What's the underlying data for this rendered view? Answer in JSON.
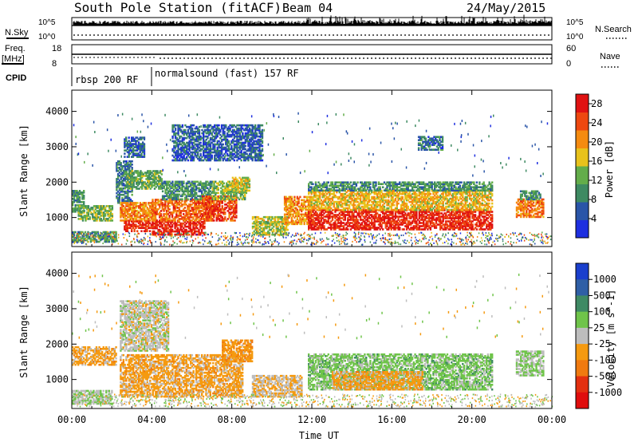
{
  "header": {
    "station": "South Pole Station (fitACF)",
    "beam": "Beam 04",
    "date": "24/May/2015"
  },
  "top_panels": {
    "nsky_label": "N.Sky",
    "nsky_ticks": [
      "10^5",
      "10^0"
    ],
    "nsearch_label": "N.Search",
    "nsearch_ticks": [
      "10^5",
      "10^0"
    ],
    "freq_label": "Freq.",
    "freq_unit": "[MHz]",
    "freq_ticks": [
      "18",
      "8"
    ],
    "nave_label": "Nave",
    "nave_ticks": [
      "60",
      "0"
    ],
    "cpid_label": "CPID",
    "cpid_segments": [
      {
        "label": "rbsp 200 RF",
        "start_hour": 0.0
      },
      {
        "label": "normalsound (fast) 157 RF",
        "start_hour": 3.9
      }
    ]
  },
  "colors": {
    "power_scale": [
      "#1e2fe0",
      "#2a55a8",
      "#3e8a62",
      "#63ad4a",
      "#e8c21b",
      "#f58b10",
      "#ee4810",
      "#e01212"
    ],
    "velocity_scale": [
      "#1a3fcd",
      "#2f5fa6",
      "#3f8a64",
      "#6fc44a",
      "#bdbdbd",
      "#f59a10",
      "#f07a10",
      "#e33010",
      "#e00d0d"
    ]
  },
  "chart_data": [
    {
      "type": "heatmap",
      "title": "",
      "xlabel": "Time UT",
      "ylabel": "Slant Range [km]",
      "xlim": [
        0,
        24
      ],
      "ylim": [
        180,
        4600
      ],
      "x_ticks": [
        "00:00",
        "04:00",
        "08:00",
        "12:00",
        "16:00",
        "20:00",
        "00:00"
      ],
      "y_ticks": [
        "1000",
        "2000",
        "3000",
        "4000"
      ],
      "colorbar": {
        "label": "Power [dB]",
        "range": [
          0,
          30
        ],
        "ticks": [
          "4",
          "8",
          "12",
          "16",
          "20",
          "24",
          "28"
        ]
      },
      "regions": [
        {
          "t0": 0.0,
          "t1": 0.6,
          "r0": 1150,
          "r1": 1750,
          "value": 10
        },
        {
          "t0": 0.3,
          "t1": 2.0,
          "r0": 900,
          "r1": 1350,
          "value": 13
        },
        {
          "t0": 0.0,
          "t1": 2.2,
          "r0": 300,
          "r1": 600,
          "value": 11
        },
        {
          "t0": 2.2,
          "t1": 3.0,
          "r0": 1400,
          "r1": 2600,
          "value": 8
        },
        {
          "t0": 2.6,
          "t1": 3.6,
          "r0": 2700,
          "r1": 3250,
          "value": 6
        },
        {
          "t0": 2.7,
          "t1": 4.5,
          "r0": 1800,
          "r1": 2300,
          "value": 12
        },
        {
          "t0": 2.4,
          "t1": 4.2,
          "r0": 900,
          "r1": 1400,
          "value": 21
        },
        {
          "t0": 2.6,
          "t1": 4.0,
          "r0": 600,
          "r1": 900,
          "value": 27
        },
        {
          "t0": 4.0,
          "t1": 6.6,
          "r0": 500,
          "r1": 900,
          "value": 28
        },
        {
          "t0": 4.0,
          "t1": 7.0,
          "r0": 900,
          "r1": 1500,
          "value": 23
        },
        {
          "t0": 4.5,
          "t1": 7.0,
          "r0": 1500,
          "r1": 2000,
          "value": 10
        },
        {
          "t0": 6.5,
          "t1": 8.2,
          "r0": 900,
          "r1": 1600,
          "value": 25
        },
        {
          "t0": 7.0,
          "t1": 8.7,
          "r0": 1500,
          "r1": 2000,
          "value": 14
        },
        {
          "t0": 8.0,
          "t1": 8.9,
          "r0": 1700,
          "r1": 2150,
          "value": 16
        },
        {
          "t0": 9.0,
          "t1": 10.8,
          "r0": 500,
          "r1": 1000,
          "value": 15
        },
        {
          "t0": 10.6,
          "t1": 12.0,
          "r0": 800,
          "r1": 1600,
          "value": 20
        },
        {
          "t0": 11.8,
          "t1": 21.0,
          "r0": 650,
          "r1": 1200,
          "value": 27
        },
        {
          "t0": 11.8,
          "t1": 21.0,
          "r0": 1200,
          "r1": 1750,
          "value": 18
        },
        {
          "t0": 11.8,
          "t1": 21.0,
          "r0": 1750,
          "r1": 2000,
          "value": 10
        },
        {
          "t0": 22.2,
          "t1": 23.6,
          "r0": 1000,
          "r1": 1500,
          "value": 22
        },
        {
          "t0": 22.4,
          "t1": 23.4,
          "r0": 1500,
          "r1": 1750,
          "value": 10
        },
        {
          "t0": 5.0,
          "t1": 9.5,
          "r0": 2600,
          "r1": 3600,
          "value": 6
        },
        {
          "t0": 17.3,
          "t1": 18.5,
          "r0": 2900,
          "r1": 3300,
          "value": 7
        }
      ]
    },
    {
      "type": "heatmap",
      "title": "",
      "xlabel": "Time UT",
      "ylabel": "Slant Range [km]",
      "xlim": [
        0,
        24
      ],
      "ylim": [
        180,
        4600
      ],
      "x_ticks": [
        "00:00",
        "04:00",
        "08:00",
        "12:00",
        "16:00",
        "20:00",
        "00:00"
      ],
      "y_ticks": [
        "1000",
        "2000",
        "3000",
        "4000"
      ],
      "colorbar": {
        "label": "Velocity [m s^-1]",
        "range": [
          -1500,
          1500
        ],
        "ticks": [
          "1000",
          "500",
          "100",
          "25",
          "-25",
          "-100",
          "-500",
          "-1000"
        ]
      },
      "regions": [
        {
          "t0": 0.0,
          "t1": 2.2,
          "r0": 1400,
          "r1": 1900,
          "value": -300
        },
        {
          "t0": 0.0,
          "t1": 2.0,
          "r0": 300,
          "r1": 700,
          "value": 150
        },
        {
          "t0": 2.4,
          "t1": 4.8,
          "r0": 1800,
          "r1": 3200,
          "value": 0
        },
        {
          "t0": 2.4,
          "t1": 8.5,
          "r0": 500,
          "r1": 1700,
          "value": -300
        },
        {
          "t0": 7.5,
          "t1": 9.0,
          "r0": 1500,
          "r1": 2100,
          "value": -400
        },
        {
          "t0": 9.0,
          "t1": 11.5,
          "r0": 500,
          "r1": 1100,
          "value": -150
        },
        {
          "t0": 11.8,
          "t1": 21.0,
          "r0": 700,
          "r1": 1700,
          "value": 300
        },
        {
          "t0": 13.0,
          "t1": 17.5,
          "r0": 700,
          "r1": 1200,
          "value": -300
        },
        {
          "t0": 22.2,
          "t1": 23.6,
          "r0": 1100,
          "r1": 1800,
          "value": 200
        }
      ]
    }
  ]
}
